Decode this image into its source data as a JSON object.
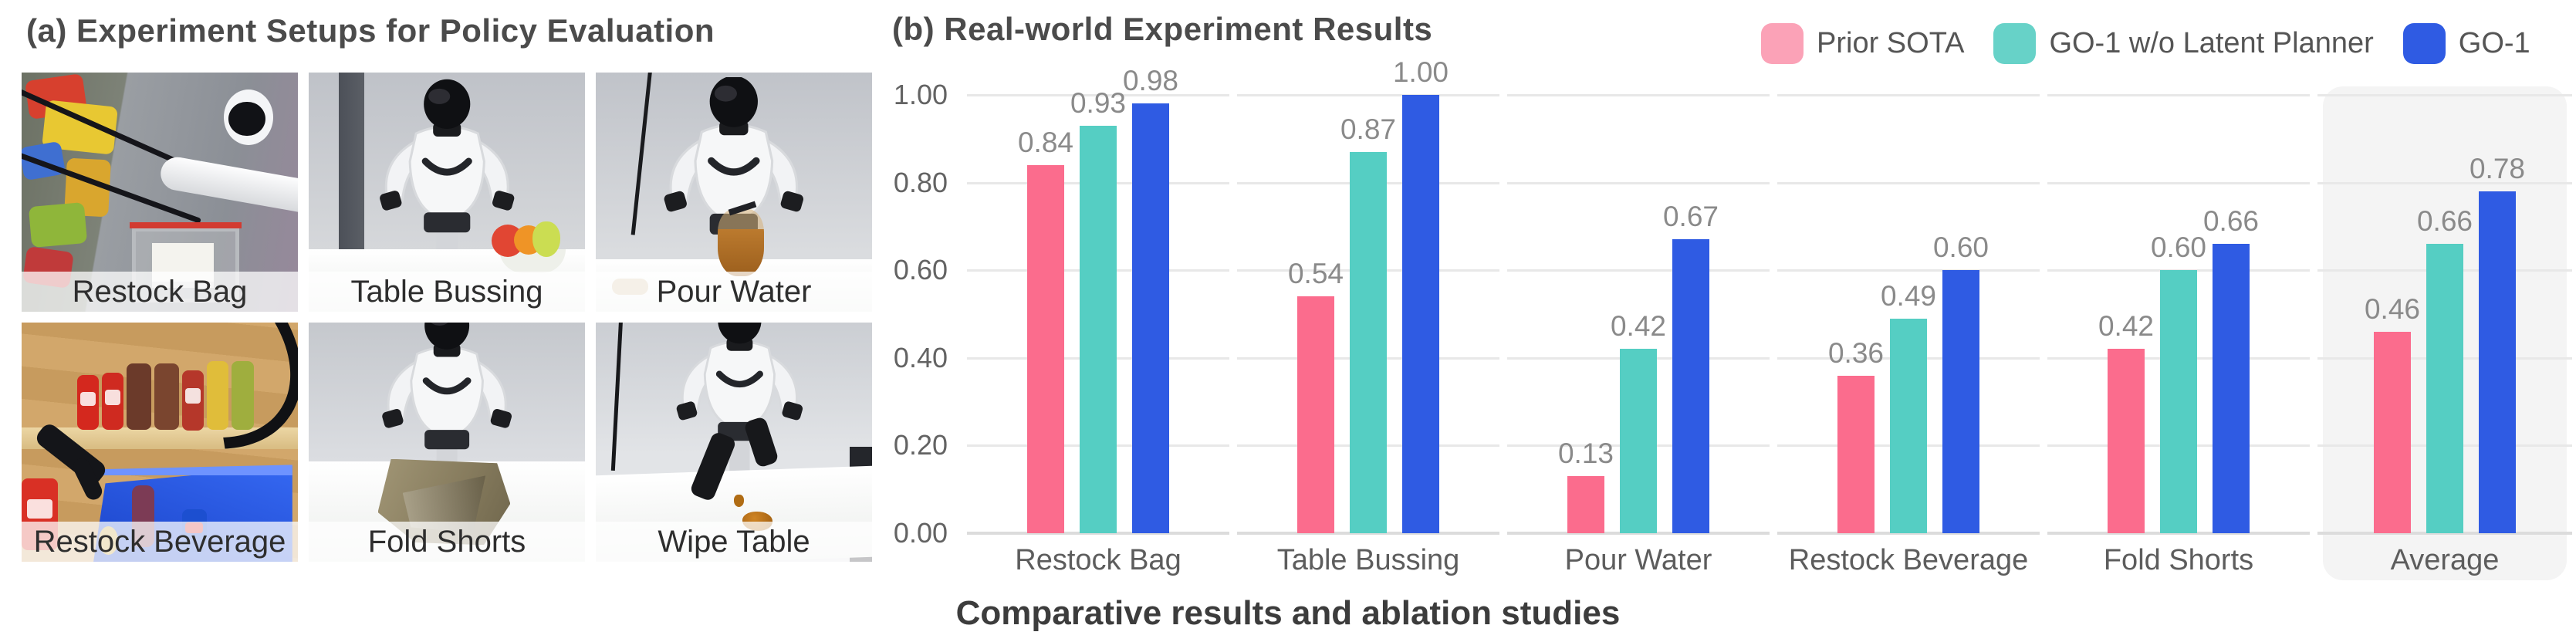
{
  "figure": {
    "panel_a": {
      "title": "(a) Experiment Setups for Policy Evaluation",
      "setups": [
        {
          "label": "Restock Bag"
        },
        {
          "label": "Table Bussing"
        },
        {
          "label": "Pour Water"
        },
        {
          "label": "Restock Beverage"
        },
        {
          "label": "Fold Shorts"
        },
        {
          "label": "Wipe Table"
        }
      ]
    },
    "panel_b": {
      "title": "(b) Real-world Experiment Results",
      "legend": [
        {
          "label": "Prior SOTA",
          "color": "#FBA2B7"
        },
        {
          "label": "GO-1 w/o Latent Planner",
          "color": "#67D2C8"
        },
        {
          "label": "GO-1",
          "color": "#2F5BE3"
        }
      ]
    },
    "caption": "Comparative results and ablation studies"
  },
  "chart_data": {
    "type": "bar",
    "title": "(b) Real-world Experiment Results",
    "categories": [
      "Restock Bag",
      "Table Bussing",
      "Pour Water",
      "Restock Beverage",
      "Fold Shorts",
      "Average"
    ],
    "series": [
      {
        "name": "Prior SOTA",
        "color": "#FB6C8D",
        "values": [
          0.84,
          0.54,
          0.13,
          0.36,
          0.42,
          0.46
        ]
      },
      {
        "name": "GO-1 w/o Latent Planner",
        "color": "#55CEC3",
        "values": [
          0.93,
          0.87,
          0.42,
          0.49,
          0.6,
          0.66
        ]
      },
      {
        "name": "GO-1",
        "color": "#2F5BE3",
        "values": [
          0.98,
          1.0,
          0.67,
          0.6,
          0.66,
          0.78
        ]
      }
    ],
    "ylim": [
      0,
      1.0
    ],
    "yticks": [
      0.0,
      0.2,
      0.4,
      0.6,
      0.8,
      1.0
    ],
    "grid": true,
    "grid_style": "per-category-panel",
    "legend_position": "top-right",
    "highlighted_category": "Average",
    "value_labels": true,
    "value_label_format": "2-decimals"
  }
}
